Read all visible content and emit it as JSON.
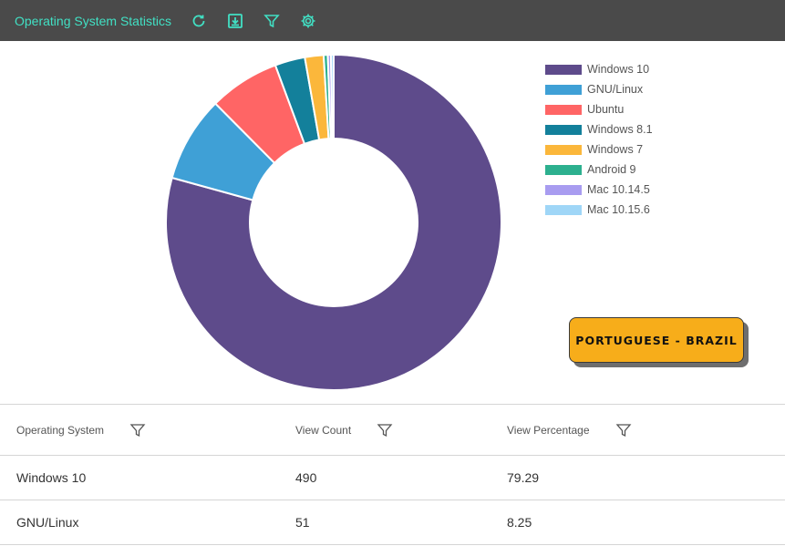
{
  "header": {
    "title": "Operating System Statistics",
    "icons": [
      "refresh-icon",
      "download-icon",
      "filter-icon",
      "settings-icon"
    ],
    "icon_color": "#41e0c4"
  },
  "chart_data": {
    "type": "pie",
    "donut": true,
    "legend_position": "right",
    "categories": [
      "Windows 10",
      "GNU/Linux",
      "Ubuntu",
      "Windows 8.1",
      "Windows 7",
      "Android 9",
      "Mac 10.14.5",
      "Mac 10.15.6"
    ],
    "values": [
      79.29,
      8.25,
      6.8,
      2.9,
      1.8,
      0.4,
      0.3,
      0.26
    ],
    "colors": [
      "#5e4b8b",
      "#3fa0d6",
      "#ff6565",
      "#13809b",
      "#fbb73b",
      "#2db08f",
      "#a89cf0",
      "#9fd6f7"
    ]
  },
  "language_button": {
    "label": "PORTUGUESE - BRAZIL"
  },
  "table": {
    "columns": [
      "Operating System",
      "View Count",
      "View Percentage"
    ],
    "rows": [
      [
        "Windows 10",
        "490",
        "79.29"
      ],
      [
        "GNU/Linux",
        "51",
        "8.25"
      ]
    ]
  }
}
